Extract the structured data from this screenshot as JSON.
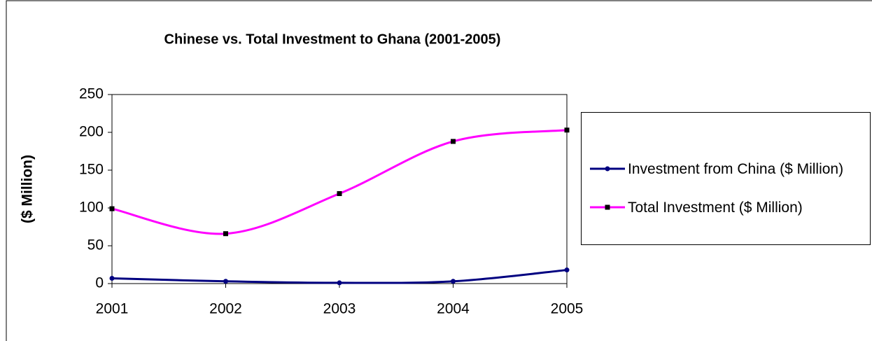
{
  "chart_data": {
    "type": "line",
    "title": "Chinese vs. Total Investment to Ghana (2001-2005)",
    "y_label": "($ Million)",
    "categories": [
      "2001",
      "2002",
      "2003",
      "2004",
      "2005"
    ],
    "series": [
      {
        "name": "Investment from China ($ Million)",
        "color": "#000080",
        "marker": "circle",
        "values": [
          7,
          3,
          1,
          3,
          18
        ]
      },
      {
        "name": "Total Investment ($ Million)",
        "color": "#ff00ff",
        "marker": "square",
        "values": [
          99,
          66,
          119,
          188,
          203
        ]
      }
    ],
    "ylim": [
      0,
      250
    ],
    "yticks": [
      0,
      50,
      100,
      150,
      200,
      250
    ],
    "smooth": true,
    "legend": "right"
  }
}
